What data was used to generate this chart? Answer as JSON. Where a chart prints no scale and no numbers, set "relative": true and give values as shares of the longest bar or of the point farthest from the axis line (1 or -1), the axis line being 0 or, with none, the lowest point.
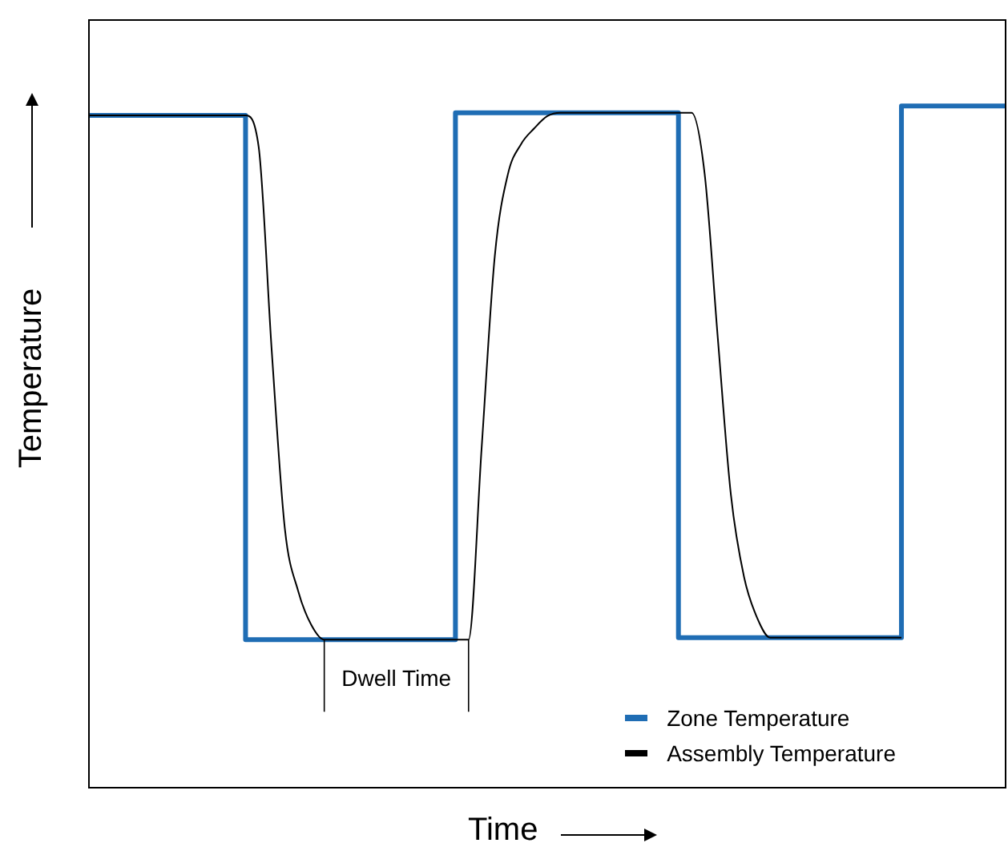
{
  "chart_data": {
    "type": "line",
    "relative": true,
    "xlabel": "Time",
    "ylabel": "Temperature",
    "legend": "bottom right",
    "marker": "none",
    "line_style": "solid",
    "annotations": [
      "Dwell Time"
    ],
    "categories": [
      null,
      null,
      null,
      null,
      null,
      null,
      null,
      null,
      null,
      null,
      null,
      null,
      null,
      null,
      null,
      null,
      null,
      null,
      null,
      null,
      null,
      null,
      null,
      null,
      null,
      null,
      null,
      null,
      null,
      null,
      null,
      null,
      null,
      null,
      null,
      null,
      null,
      null,
      null,
      null,
      null,
      null,
      null,
      null,
      null,
      null,
      null,
      null,
      null,
      null,
      null,
      null,
      null,
      null,
      null,
      null,
      null,
      null,
      null,
      null,
      null,
      null,
      null,
      null,
      null,
      null,
      null,
      null,
      null,
      null,
      null
    ],
    "series": [
      {
        "name": "Zone Temperature",
        "type": "step",
        "color": "#1f6db4",
        "values": [
          0.986,
          0.986,
          0.986,
          0.986,
          0.986,
          0.986,
          0.986,
          0.986,
          0.986,
          0.986,
          0.986,
          0.986,
          0.986,
          0.218,
          0.218,
          0.218,
          0.218,
          0.218,
          0.218,
          0.218,
          0.218,
          0.218,
          0.218,
          0.218,
          0.218,
          0.218,
          0.218,
          0.218,
          0.218,
          0.99,
          0.99,
          0.99,
          0.99,
          0.99,
          0.99,
          0.99,
          0.99,
          0.99,
          0.99,
          0.99,
          0.99,
          0.99,
          0.99,
          0.99,
          0.99,
          0.99,
          0.221,
          0.221,
          0.221,
          0.221,
          0.221,
          0.221,
          0.221,
          0.221,
          0.221,
          0.221,
          0.221,
          0.221,
          0.221,
          0.221,
          0.221,
          0.221,
          0.221,
          1,
          1,
          1,
          1,
          1,
          1,
          1,
          1
        ]
      },
      {
        "name": "Assembly Temperature",
        "type": "line",
        "color": "#000000",
        "values": [
          0.986,
          0.986,
          0.986,
          0.986,
          0.986,
          0.986,
          0.986,
          0.986,
          0.986,
          0.986,
          0.986,
          0.986,
          0.986,
          0.94,
          0.64,
          0.38,
          0.29,
          0.24,
          0.218,
          0.218,
          0.218,
          0.218,
          0.218,
          0.218,
          0.218,
          0.218,
          0.218,
          0.218,
          0.218,
          0.218,
          0.5,
          0.78,
          0.9,
          0.944,
          0.967,
          0.985,
          0.99,
          0.99,
          0.99,
          0.99,
          0.99,
          0.99,
          0.99,
          0.99,
          0.99,
          0.99,
          0.99,
          0.9,
          0.66,
          0.43,
          0.31,
          0.25,
          0.221,
          0.221,
          0.221,
          0.221,
          0.221,
          0.221,
          0.221,
          0.221,
          0.221,
          0.221,
          0.221,
          null,
          null,
          null,
          null,
          null,
          null,
          null,
          null
        ]
      }
    ]
  }
}
